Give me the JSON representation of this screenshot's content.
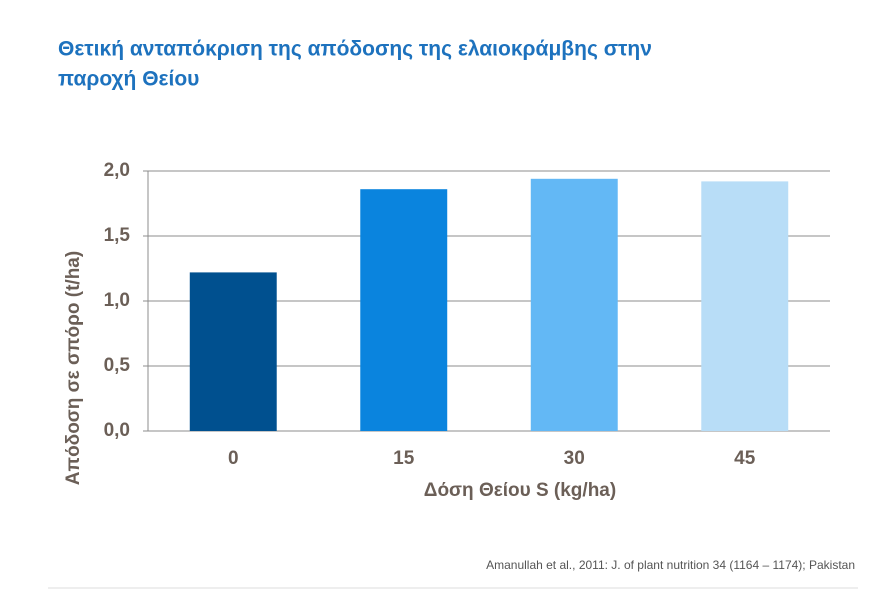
{
  "chart_data": {
    "type": "bar",
    "title_lines": [
      "Θετική ανταπόκριση της απόδοσης της ελαιοκράμβης στην",
      "παροχή Θείου"
    ],
    "x_label": "Δόση Θείου S (kg/ha)",
    "y_label": "Απόδοση σε σπόρο (t/ha)",
    "categories": [
      "0",
      "15",
      "30",
      "45"
    ],
    "values": [
      1.22,
      1.86,
      1.94,
      1.92
    ],
    "colors": [
      "#00508f",
      "#0a84de",
      "#63b8f5",
      "#b8ddf7"
    ],
    "ylim": [
      0,
      2
    ],
    "yticks": [
      {
        "value": 0,
        "label": "0,0"
      },
      {
        "value": 0.5,
        "label": "0,5"
      },
      {
        "value": 1,
        "label": "1,0"
      },
      {
        "value": 1.5,
        "label": "1,5"
      },
      {
        "value": 2,
        "label": "2,0"
      }
    ],
    "grid": true,
    "source": "Amanullah et al., 2011: J. of plant nutrition 34 (1164 – 1174); Pakistan"
  }
}
